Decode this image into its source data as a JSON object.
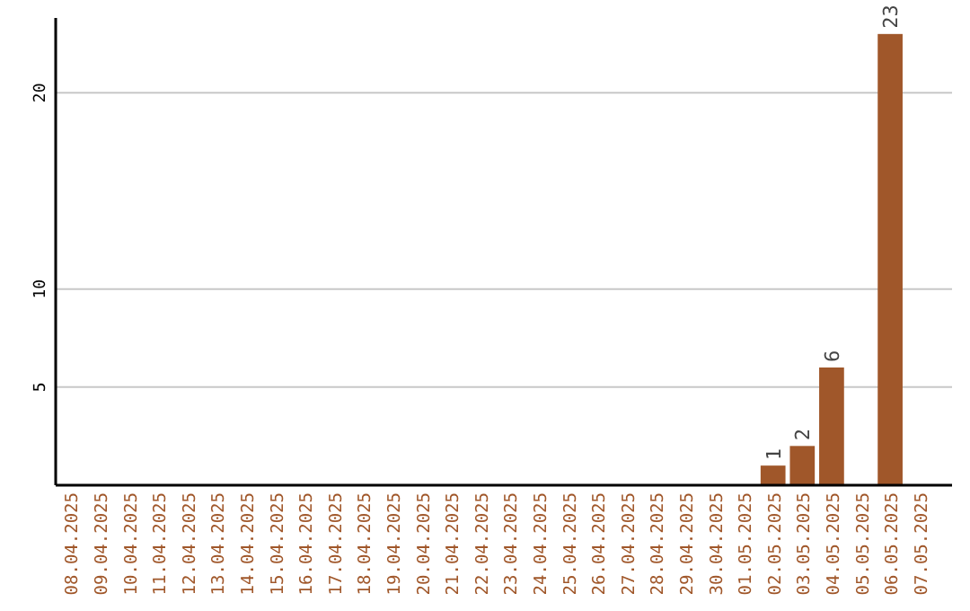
{
  "chart_data": {
    "type": "bar",
    "categories": [
      "08.04.2025",
      "09.04.2025",
      "10.04.2025",
      "11.04.2025",
      "12.04.2025",
      "13.04.2025",
      "14.04.2025",
      "15.04.2025",
      "16.04.2025",
      "17.04.2025",
      "18.04.2025",
      "19.04.2025",
      "20.04.2025",
      "21.04.2025",
      "22.04.2025",
      "23.04.2025",
      "24.04.2025",
      "25.04.2025",
      "26.04.2025",
      "27.04.2025",
      "28.04.2025",
      "29.04.2025",
      "30.04.2025",
      "01.05.2025",
      "02.05.2025",
      "03.05.2025",
      "04.05.2025",
      "05.05.2025",
      "06.05.2025",
      "07.05.2025"
    ],
    "values": [
      0,
      0,
      0,
      0,
      0,
      0,
      0,
      0,
      0,
      0,
      0,
      0,
      0,
      0,
      0,
      0,
      0,
      0,
      0,
      0,
      0,
      0,
      0,
      0,
      1,
      2,
      6,
      0,
      23,
      0
    ],
    "value_labels": [
      null,
      null,
      null,
      null,
      null,
      null,
      null,
      null,
      null,
      null,
      null,
      null,
      null,
      null,
      null,
      null,
      null,
      null,
      null,
      null,
      null,
      null,
      null,
      null,
      "1",
      "2",
      "6",
      null,
      "23",
      null
    ],
    "color": "#a0572a",
    "ylim": [
      0,
      24
    ],
    "yticks": [
      5,
      10,
      20
    ],
    "grid": "y"
  }
}
